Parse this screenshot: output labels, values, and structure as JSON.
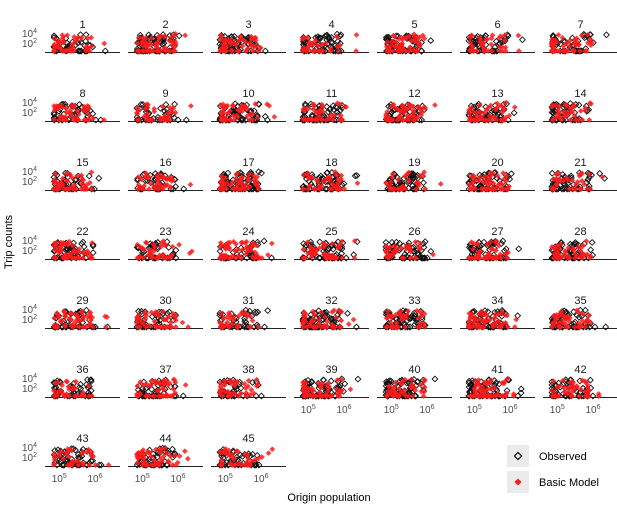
{
  "chart_data": {
    "type": "scatter",
    "panels": [
      "1",
      "2",
      "3",
      "4",
      "5",
      "6",
      "7",
      "8",
      "9",
      "10",
      "11",
      "12",
      "13",
      "14",
      "15",
      "16",
      "17",
      "18",
      "19",
      "20",
      "21",
      "22",
      "23",
      "24",
      "25",
      "26",
      "27",
      "28",
      "29",
      "30",
      "31",
      "32",
      "33",
      "34",
      "35",
      "36",
      "37",
      "38",
      "39",
      "40",
      "41",
      "42",
      "43",
      "44",
      "45"
    ],
    "xlabel": "Origin population",
    "ylabel": "Trip counts",
    "x_scale": "log",
    "y_scale": "log",
    "x_ticks": [
      "10^5",
      "10^6"
    ],
    "y_ticks": [
      "10^2",
      "10^4"
    ],
    "xlim": [
      40000,
      5000000
    ],
    "ylim": [
      1,
      100000
    ],
    "grid": false,
    "legend_position": "bottom-right",
    "series": [
      {
        "name": "Observed",
        "color": "#000000",
        "marker": "hollow-diamond"
      },
      {
        "name": "Basic Model",
        "color": "#ff0000",
        "marker": "filled-diamond"
      }
    ]
  },
  "axes": {
    "x_tick_base": "10",
    "x_tick_exps": [
      "5",
      "6"
    ],
    "y_tick_base": "10",
    "y_tick_exps": [
      "2",
      "4"
    ]
  },
  "legend": {
    "observed_label": "Observed",
    "model_label": "Basic Model"
  }
}
